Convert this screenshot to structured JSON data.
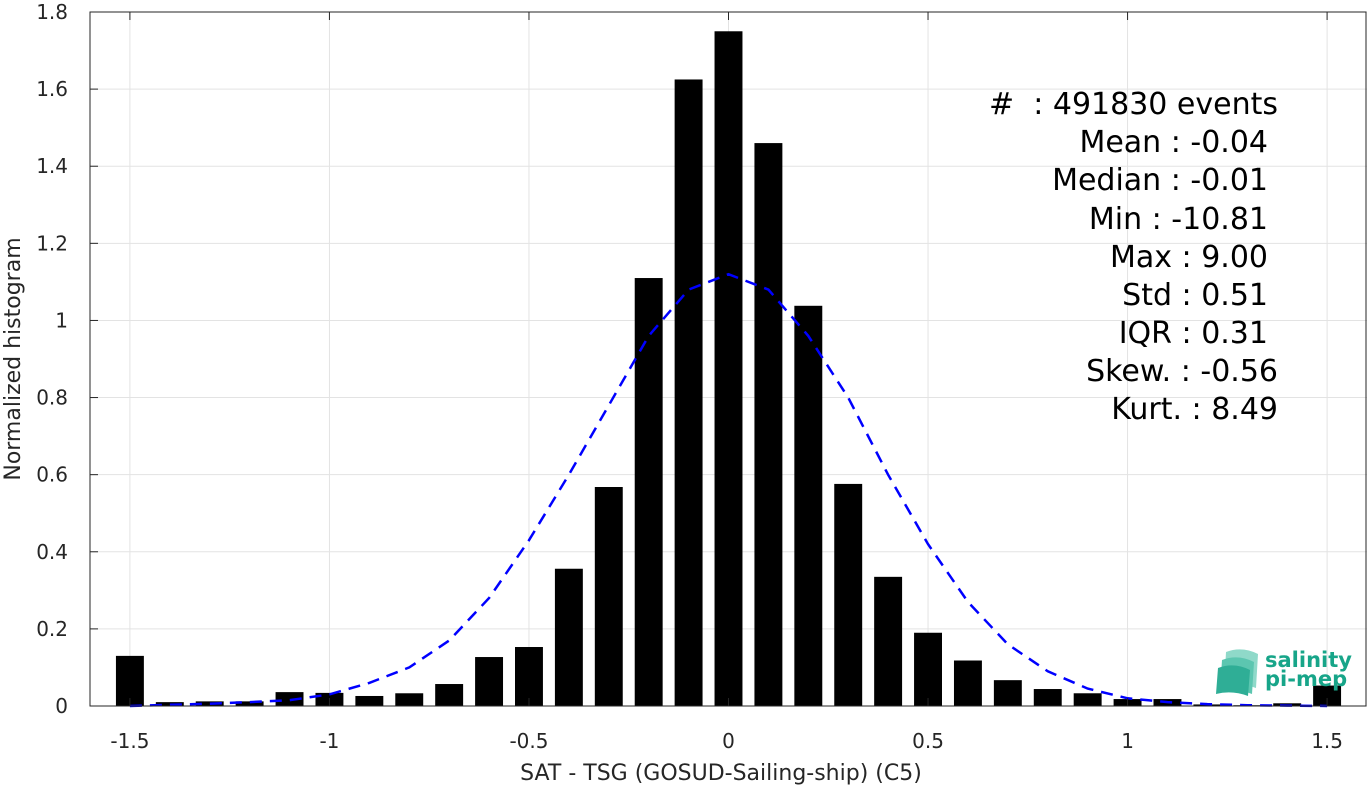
{
  "chart_data": {
    "type": "bar",
    "xlabel": "SAT - TSG (GOSUD-Sailing-ship) (C5)",
    "ylabel": "Normalized histogram",
    "xlim": [
      -1.6,
      1.6
    ],
    "ylim": [
      0,
      1.8
    ],
    "xticks": [
      -1.5,
      -1,
      -0.5,
      0,
      0.5,
      1,
      1.5
    ],
    "xtick_labels": [
      "-1.5",
      "-1",
      "-0.5",
      "0",
      "0.5",
      "1",
      "1.5"
    ],
    "yticks": [
      0,
      0.2,
      0.4,
      0.6,
      0.8,
      1,
      1.2,
      1.4,
      1.6,
      1.8
    ],
    "ytick_labels": [
      "0",
      "0.2",
      "0.4",
      "0.6",
      "0.8",
      "1",
      "1.2",
      "1.4",
      "1.6",
      "1.8"
    ],
    "grid": true,
    "bar_width": 0.07,
    "bar_color": "#000000",
    "bars": {
      "x": [
        -1.5,
        -1.4,
        -1.3,
        -1.2,
        -1.1,
        -1.0,
        -0.9,
        -0.8,
        -0.7,
        -0.6,
        -0.5,
        -0.4,
        -0.3,
        -0.2,
        -0.1,
        0.0,
        0.1,
        0.2,
        0.3,
        0.4,
        0.5,
        0.6,
        0.7,
        0.8,
        0.9,
        1.0,
        1.1,
        1.2,
        1.3,
        1.4,
        1.5
      ],
      "values": [
        0.13,
        0.01,
        0.012,
        0.012,
        0.036,
        0.034,
        0.026,
        0.033,
        0.057,
        0.127,
        0.153,
        0.356,
        0.568,
        1.11,
        1.625,
        1.75,
        1.46,
        1.038,
        0.576,
        0.335,
        0.19,
        0.118,
        0.067,
        0.044,
        0.033,
        0.018,
        0.018,
        0.004,
        0.002,
        0.007,
        0.053
      ]
    },
    "fit": {
      "style": "dashed",
      "color": "#0000ff",
      "x": [
        -1.5,
        -1.4,
        -1.3,
        -1.2,
        -1.1,
        -1.0,
        -0.9,
        -0.8,
        -0.7,
        -0.6,
        -0.5,
        -0.4,
        -0.3,
        -0.2,
        -0.1,
        0.0,
        0.1,
        0.2,
        0.3,
        0.4,
        0.5,
        0.6,
        0.7,
        0.8,
        0.9,
        1.0,
        1.1,
        1.2,
        1.3,
        1.4,
        1.5
      ],
      "y": [
        0.0,
        0.003,
        0.006,
        0.01,
        0.015,
        0.03,
        0.06,
        0.1,
        0.17,
        0.28,
        0.43,
        0.6,
        0.78,
        0.96,
        1.08,
        1.12,
        1.08,
        0.96,
        0.8,
        0.6,
        0.42,
        0.27,
        0.16,
        0.09,
        0.045,
        0.02,
        0.01,
        0.005,
        0.002,
        0.001,
        0.0
      ]
    },
    "annotations": [
      "#  : 491830 events",
      "Mean : -0.04",
      "Median : -0.01",
      "Min : -10.81",
      "Max : 9.00",
      "Std : 0.51",
      "IQR : 0.31",
      "Skew. : -0.56",
      "Kurt. : 8.49"
    ]
  },
  "logo": {
    "line1": "salinity",
    "line2": "pi-mep",
    "color": "#17a589"
  }
}
